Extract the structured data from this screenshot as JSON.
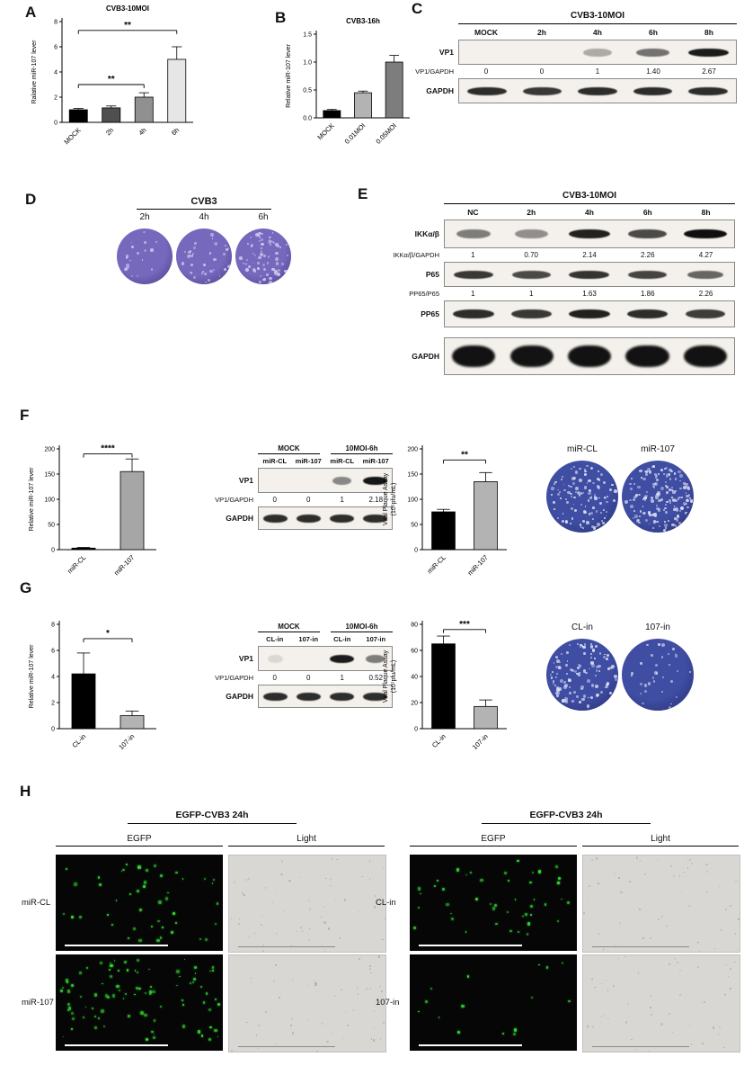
{
  "panels": {
    "A": "A",
    "B": "B",
    "C": "C",
    "D": "D",
    "E": "E",
    "F": "F",
    "G": "G",
    "H": "H"
  },
  "chart_data": [
    {
      "id": "A",
      "type": "bar",
      "title": "CVB3-10MOI",
      "ylabel": "Ralative miR-107 lever",
      "ylim": [
        0,
        8
      ],
      "yticks": [
        0,
        2,
        4,
        6,
        8
      ],
      "ytick_labels": [
        "0",
        "2",
        "4",
        "6",
        "8"
      ],
      "categories": [
        "MOCK",
        "2h",
        "4h",
        "6h"
      ],
      "values": [
        1.0,
        1.15,
        2.0,
        5.0
      ],
      "errors": [
        0.1,
        0.15,
        0.35,
        1.0
      ],
      "colors": [
        "#000000",
        "#4f4f4f",
        "#909090",
        "#e6e6e6"
      ],
      "significance": [
        {
          "from": 0,
          "to": 2,
          "label": "**",
          "y": 3.0
        },
        {
          "from": 0,
          "to": 3,
          "label": "**",
          "y": 7.3
        }
      ]
    },
    {
      "id": "B",
      "type": "bar",
      "title": "CVB3-16h",
      "ylabel": "Relative miR-107 lever",
      "ylim": [
        0,
        1.5
      ],
      "yticks": [
        0,
        0.5,
        1.0,
        1.5
      ],
      "ytick_labels": [
        "0.0",
        "0.5",
        "1.0",
        "1.5"
      ],
      "categories": [
        "MOCK",
        "0.01MOI",
        "0.05MOI"
      ],
      "values": [
        0.13,
        0.45,
        1.0
      ],
      "errors": [
        0.02,
        0.03,
        0.12
      ],
      "colors": [
        "#000000",
        "#b3b3b3",
        "#7d7d7d"
      ],
      "significance": []
    },
    {
      "id": "F1",
      "type": "bar",
      "title": "",
      "ylabel": "Relative miR-107 lever",
      "ylim": [
        0,
        200
      ],
      "yticks": [
        0,
        50,
        100,
        150,
        200
      ],
      "ytick_labels": [
        "0",
        "50",
        "100",
        "150",
        "200"
      ],
      "categories": [
        "miR-CL",
        "miR-107"
      ],
      "values": [
        3,
        155
      ],
      "errors": [
        1.5,
        25
      ],
      "colors": [
        "#000000",
        "#a6a6a6"
      ],
      "significance": [
        {
          "from": 0,
          "to": 1,
          "label": "****",
          "y": 190
        }
      ]
    },
    {
      "id": "F2",
      "type": "bar",
      "title": "",
      "ylabel": "Viral Plaque Assay\n(10⁵pfu/mL)",
      "ylim": [
        0,
        200
      ],
      "yticks": [
        0,
        50,
        100,
        150,
        200
      ],
      "ytick_labels": [
        "0",
        "50",
        "100",
        "150",
        "200"
      ],
      "categories": [
        "miR-CL",
        "miR-107"
      ],
      "values": [
        75,
        135
      ],
      "errors": [
        5,
        18
      ],
      "colors": [
        "#000000",
        "#b3b3b3"
      ],
      "significance": [
        {
          "from": 0,
          "to": 1,
          "label": "**",
          "y": 178
        }
      ]
    },
    {
      "id": "G1",
      "type": "bar",
      "title": "",
      "ylabel": "Relative miR-107 lever",
      "ylim": [
        0,
        8
      ],
      "yticks": [
        0,
        2,
        4,
        6,
        8
      ],
      "ytick_labels": [
        "0",
        "2",
        "4",
        "6",
        "8"
      ],
      "categories": [
        "CL-in",
        "107-in"
      ],
      "values": [
        4.2,
        1.0
      ],
      "errors": [
        1.6,
        0.35
      ],
      "colors": [
        "#000000",
        "#b3b3b3"
      ],
      "significance": [
        {
          "from": 0,
          "to": 1,
          "label": "*",
          "y": 6.9
        }
      ]
    },
    {
      "id": "G2",
      "type": "bar",
      "title": "",
      "ylabel": "Viral Plaque Assay\n(10⁷pfu/mL)",
      "ylim": [
        0,
        80
      ],
      "yticks": [
        0,
        20,
        40,
        60,
        80
      ],
      "ytick_labels": [
        "0",
        "20",
        "40",
        "60",
        "80"
      ],
      "categories": [
        "CL-in",
        "107-in"
      ],
      "values": [
        65,
        17
      ],
      "errors": [
        6,
        5
      ],
      "colors": [
        "#000000",
        "#b3b3b3"
      ],
      "significance": [
        {
          "from": 0,
          "to": 1,
          "label": "***",
          "y": 76
        }
      ]
    }
  ],
  "blots": {
    "C": {
      "header": "CVB3-10MOI",
      "lanes": [
        "MOCK",
        "2h",
        "4h",
        "6h",
        "8h"
      ],
      "label_width": 58,
      "rows": [
        {
          "type": "blot",
          "label": "VP1",
          "bands": [
            0,
            0,
            0.3,
            0.55,
            0.92
          ],
          "h": 26,
          "bh": 9
        },
        {
          "type": "ratio",
          "label": "VP1/GAPDH",
          "values": [
            "0",
            "0",
            "1",
            "1.40",
            "2.67"
          ]
        },
        {
          "type": "blot",
          "label": "GAPDH",
          "bands": [
            0.85,
            0.8,
            0.85,
            0.85,
            0.85
          ],
          "h": 26,
          "bh": 9
        }
      ]
    },
    "E": {
      "header": "CVB3-10MOI",
      "lanes": [
        "NC",
        "2h",
        "4h",
        "6h",
        "8h"
      ],
      "label_width": 86,
      "rows": [
        {
          "type": "blot",
          "label": "IKKα/β",
          "bands": [
            0.5,
            0.42,
            0.9,
            0.72,
            0.98
          ],
          "h": 30,
          "bh": 10
        },
        {
          "type": "ratio",
          "label": "IKKα/β/GAPDH",
          "values": [
            "1",
            "0.70",
            "2.14",
            "2.26",
            "4.27"
          ]
        },
        {
          "type": "blot",
          "label": "P65",
          "bands": [
            0.8,
            0.72,
            0.82,
            0.75,
            0.6
          ],
          "h": 26,
          "bh": 9
        },
        {
          "type": "ratio",
          "label": "PP65/P65",
          "values": [
            "1",
            "1",
            "1.63",
            "1.86",
            "2.26"
          ]
        },
        {
          "type": "blot",
          "label": "PP65",
          "bands": [
            0.85,
            0.8,
            0.9,
            0.85,
            0.78
          ],
          "h": 28,
          "bh": 10
        },
        {
          "type": "gap",
          "h": 8
        },
        {
          "type": "blot",
          "label": "GAPDH",
          "bands": [
            0.97,
            0.96,
            0.97,
            0.97,
            0.97
          ],
          "h": 40,
          "bh": 24
        }
      ]
    },
    "F": {
      "groups": [
        {
          "label": "MOCK",
          "lanes": 2
        },
        {
          "label": "10MOI-6h",
          "lanes": 2
        }
      ],
      "lanes": [
        "miR-CL",
        "miR-107",
        "miR-CL",
        "miR-107"
      ],
      "label_width": 55,
      "rows": [
        {
          "type": "blot",
          "label": "VP1",
          "bands": [
            0,
            0,
            0.45,
            0.95
          ],
          "h": 26,
          "bh": 9
        },
        {
          "type": "ratio",
          "label": "VP1/GAPDH",
          "values": [
            "0",
            "0",
            "1",
            "2.18"
          ]
        },
        {
          "type": "blot",
          "label": "GAPDH",
          "bands": [
            0.85,
            0.85,
            0.85,
            0.85
          ],
          "h": 24,
          "bh": 9
        }
      ]
    },
    "G": {
      "groups": [
        {
          "label": "MOCK",
          "lanes": 2
        },
        {
          "label": "10MOI-6h",
          "lanes": 2
        }
      ],
      "lanes": [
        "CL-in",
        "107-in",
        "CL-in",
        "107-in"
      ],
      "label_width": 55,
      "rows": [
        {
          "type": "blot",
          "label": "VP1",
          "bands": [
            0.1,
            0,
            0.92,
            0.5
          ],
          "h": 26,
          "bh": 9
        },
        {
          "type": "ratio",
          "label": "VP1/GAPDH",
          "values": [
            "0",
            "0",
            "1",
            "0.52"
          ]
        },
        {
          "type": "blot",
          "label": "GAPDH",
          "bands": [
            0.85,
            0.85,
            0.85,
            0.85
          ],
          "h": 24,
          "bh": 9
        }
      ]
    }
  },
  "wells": {
    "D": {
      "title": "CVB3",
      "labels": [
        "2h",
        "4h",
        "6h"
      ],
      "plaque_density": [
        "low",
        "medium",
        "high"
      ],
      "base": "#7668bd",
      "rim": "#463a85",
      "speckle": "#cfc6ef",
      "diameter": 62
    },
    "F": {
      "labels": [
        "miR-CL",
        "miR-107"
      ],
      "plaque_density": [
        "high",
        "dense"
      ],
      "base": "#3f4da3",
      "rim": "#272f6e",
      "speckle": "#dde1f6",
      "diameter": 80
    },
    "G": {
      "labels": [
        "CL-in",
        "107-in"
      ],
      "plaque_density": [
        "high",
        "low"
      ],
      "base": "#3f4da3",
      "rim": "#272f6e",
      "speckle": "#dde1f6",
      "diameter": 80
    }
  },
  "microscopy": {
    "groups": [
      {
        "header": "EGFP-CVB3 24h",
        "columns": [
          "EGFP",
          "Light"
        ],
        "rows": [
          {
            "label": "miR-CL",
            "egfp_density": "medium"
          },
          {
            "label": "miR-107",
            "egfp_density": "high"
          }
        ]
      },
      {
        "header": "EGFP-CVB3 24h",
        "columns": [
          "EGFP",
          "Light"
        ],
        "rows": [
          {
            "label": "CL-in",
            "egfp_density": "medium"
          },
          {
            "label": "107-in",
            "egfp_density": "low"
          }
        ]
      }
    ],
    "egfp_color": "#32e032"
  }
}
